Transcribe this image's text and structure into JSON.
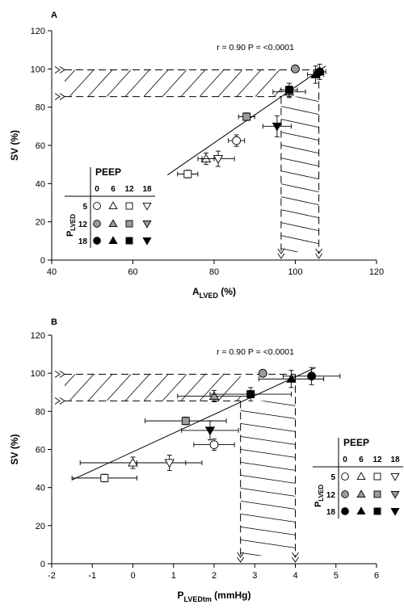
{
  "chart_data": [
    {
      "panel_label": "A",
      "type": "scatter",
      "stats_text": "r = 0.90 P = <0.0001",
      "xlabel_main": "A",
      "xlabel_sub": "LVED",
      "xlabel_unit": "(%)",
      "ylabel": "SV (%)",
      "xlim": [
        40,
        120
      ],
      "ylim": [
        0,
        120
      ],
      "xticks": [
        "40",
        "60",
        "80",
        "100",
        "120"
      ],
      "yticks": [
        "0",
        "20",
        "40",
        "60",
        "80",
        "100",
        "120"
      ],
      "regression": {
        "x": [
          68.5,
          107.5
        ],
        "y": [
          44.5,
          101.5
        ]
      },
      "band_y": [
        85.5,
        99.5
      ],
      "band_x": [
        96.5,
        105.8
      ],
      "points": [
        {
          "x": 73.5,
          "y": 45,
          "xerr": 2.5,
          "yerr": 2,
          "shape": "square",
          "fill": "white"
        },
        {
          "x": 78,
          "y": 53,
          "xerr": 2,
          "yerr": 3,
          "shape": "triangle-up",
          "fill": "white"
        },
        {
          "x": 81,
          "y": 53,
          "xerr": 4,
          "yerr": 4,
          "shape": "triangle-down",
          "fill": "white"
        },
        {
          "x": 85.5,
          "y": 62.5,
          "xerr": 2,
          "yerr": 3,
          "shape": "circle",
          "fill": "white"
        },
        {
          "x": 88,
          "y": 75,
          "xerr": 2,
          "yerr": 2,
          "shape": "square",
          "fill": "gray"
        },
        {
          "x": 95.5,
          "y": 70,
          "xerr": 3.5,
          "yerr": 5.5,
          "shape": "triangle-down",
          "fill": "black"
        },
        {
          "x": 98.5,
          "y": 88,
          "xerr": 4,
          "yerr": 3,
          "shape": "triangle-up",
          "fill": "gray"
        },
        {
          "x": 98.5,
          "y": 89,
          "xerr": 2,
          "yerr": 3.5,
          "shape": "square",
          "fill": "black"
        },
        {
          "x": 100,
          "y": 100,
          "xerr": 0,
          "yerr": 0,
          "shape": "circle",
          "fill": "gray"
        },
        {
          "x": 105,
          "y": 97,
          "xerr": 2,
          "yerr": 4.5,
          "shape": "triangle-up",
          "fill": "black"
        },
        {
          "x": 106,
          "y": 98.5,
          "xerr": 1.5,
          "yerr": 4,
          "shape": "circle",
          "fill": "black"
        }
      ],
      "legend": {
        "title": "PEEP",
        "peep_values": [
          "0",
          "6",
          "12",
          "18"
        ],
        "row_axis_main": "P",
        "row_axis_sub": "LVED",
        "row_values": [
          "5",
          "12",
          "18"
        ],
        "placement": "bottom-left"
      }
    },
    {
      "panel_label": "B",
      "type": "scatter",
      "stats_text": "r = 0.90 P = <0.0001",
      "xlabel_main": "P",
      "xlabel_sub": "LVEDtm",
      "xlabel_unit": "(mmHg)",
      "ylabel": "SV (%)",
      "xlim": [
        -2,
        6
      ],
      "ylim": [
        0,
        120
      ],
      "xticks": [
        "-2",
        "-1",
        "0",
        "1",
        "2",
        "3",
        "4",
        "5",
        "6"
      ],
      "yticks": [
        "0",
        "20",
        "40",
        "60",
        "80",
        "100",
        "120"
      ],
      "regression": {
        "x": [
          -1.5,
          4.5
        ],
        "y": [
          44,
          103
        ]
      },
      "band_y": [
        85.5,
        99.5
      ],
      "band_x": [
        2.65,
        4.0
      ],
      "points": [
        {
          "x": -0.7,
          "y": 45,
          "xerr": 0.8,
          "yerr": 2,
          "shape": "square",
          "fill": "white"
        },
        {
          "x": 0,
          "y": 53,
          "xerr": 1.3,
          "yerr": 3,
          "shape": "triangle-up",
          "fill": "white"
        },
        {
          "x": 0.9,
          "y": 53,
          "xerr": 0.8,
          "yerr": 4,
          "shape": "triangle-down",
          "fill": "white"
        },
        {
          "x": 2.0,
          "y": 62.5,
          "xerr": 0.5,
          "yerr": 3,
          "shape": "circle",
          "fill": "white"
        },
        {
          "x": 1.3,
          "y": 75,
          "xerr": 1.0,
          "yerr": 2,
          "shape": "square",
          "fill": "gray"
        },
        {
          "x": 1.9,
          "y": 70,
          "xerr": 0.7,
          "yerr": 5,
          "shape": "triangle-down",
          "fill": "black"
        },
        {
          "x": 2.0,
          "y": 88,
          "xerr": 0.9,
          "yerr": 3,
          "shape": "triangle-up",
          "fill": "gray"
        },
        {
          "x": 2.9,
          "y": 89,
          "xerr": 1.0,
          "yerr": 3.5,
          "shape": "square",
          "fill": "black"
        },
        {
          "x": 3.2,
          "y": 100,
          "xerr": 0,
          "yerr": 0,
          "shape": "circle",
          "fill": "gray"
        },
        {
          "x": 3.9,
          "y": 97,
          "xerr": 0.8,
          "yerr": 4.5,
          "shape": "triangle-up",
          "fill": "black"
        },
        {
          "x": 4.4,
          "y": 98.5,
          "xerr": 0.7,
          "yerr": 4.5,
          "shape": "circle",
          "fill": "black"
        }
      ],
      "legend": {
        "title": "PEEP",
        "peep_values": [
          "0",
          "6",
          "12",
          "18"
        ],
        "row_axis_main": "P",
        "row_axis_sub": "LVED",
        "row_values": [
          "5",
          "12",
          "18"
        ],
        "placement": "bottom-right"
      }
    }
  ],
  "colors": {
    "white_fill": "#ffffff",
    "gray_fill": "#9a9a9a",
    "black_fill": "#000000"
  }
}
